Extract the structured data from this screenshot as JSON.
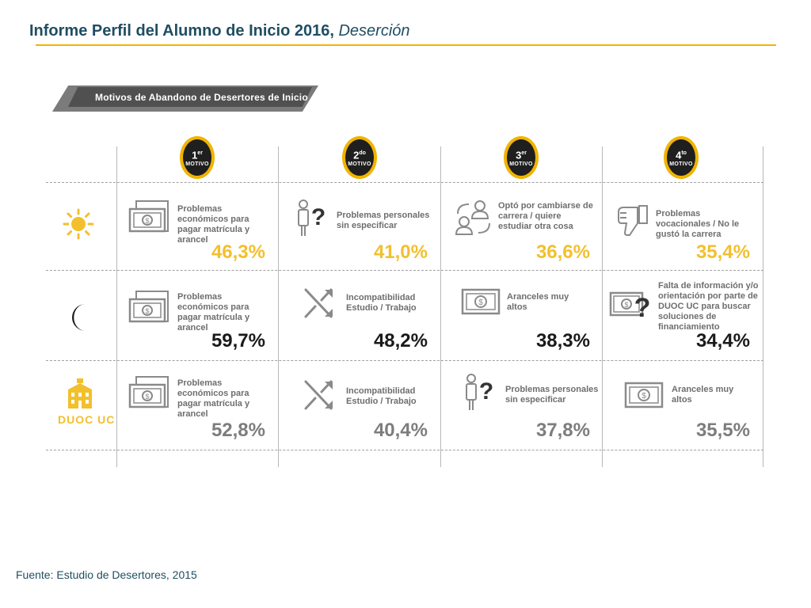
{
  "header": {
    "title_main": "Informe Perfil del Alumno de Inicio 2016,",
    "title_em": "Deserción"
  },
  "banner": {
    "title": "Motivos de Abandono de Desertores de Inicio"
  },
  "badges": [
    {
      "num": "1",
      "sup": "er",
      "label": "MOTIVO"
    },
    {
      "num": "2",
      "sup": "do",
      "label": "MOTIVO"
    },
    {
      "num": "3",
      "sup": "er",
      "label": "MOTIVO"
    },
    {
      "num": "4",
      "sup": "to",
      "label": "MOTIVO"
    }
  ],
  "rows": [
    {
      "icon": "sun-icon",
      "color": "#f2c02d",
      "cells": [
        {
          "icon": "money-icon",
          "label": "Problemas económicos para pagar matrícula y arancel",
          "pct": "46,3%"
        },
        {
          "icon": "person-question-icon",
          "label": "Problemas personales sin especificar",
          "pct": "41,0%"
        },
        {
          "icon": "people-swap-icon",
          "label": "Optó por cambiarse de carrera / quiere estudiar otra cosa",
          "pct": "36,6%"
        },
        {
          "icon": "thumbs-down-icon",
          "label": "Problemas vocacionales / No le gustó la carrera",
          "pct": "35,4%"
        }
      ]
    },
    {
      "icon": "moon-icon",
      "color": "#1a1a1a",
      "cells": [
        {
          "icon": "money-icon",
          "label": "Problemas económicos para pagar matrícula y arancel",
          "pct": "59,7%"
        },
        {
          "icon": "shuffle-icon",
          "label": "Incompatibilidad Estudio / Trabajo",
          "pct": "48,2%"
        },
        {
          "icon": "money-icon",
          "label": "Aranceles muy altos",
          "pct": "38,3%"
        },
        {
          "icon": "money-question-icon",
          "label": "Falta de información y/o orientación por parte de DUOC UC para buscar soluciones de financiamiento",
          "pct": "34,4%"
        }
      ]
    },
    {
      "icon": "duoc-logo-icon",
      "logo_text": "DUOC UC",
      "color": "#7d7d7d",
      "cells": [
        {
          "icon": "money-icon",
          "label": "Problemas económicos para pagar matrícula y arancel",
          "pct": "52,8%"
        },
        {
          "icon": "shuffle-icon",
          "label": "Incompatibilidad Estudio / Trabajo",
          "pct": "40,4%"
        },
        {
          "icon": "person-question-icon",
          "label": "Problemas personales sin especificar",
          "pct": "37,8%"
        },
        {
          "icon": "money-icon",
          "label": "Aranceles muy altos",
          "pct": "35,5%"
        }
      ]
    }
  ],
  "footer": {
    "source": "Fuente: Estudio de Desertores, 2015"
  }
}
